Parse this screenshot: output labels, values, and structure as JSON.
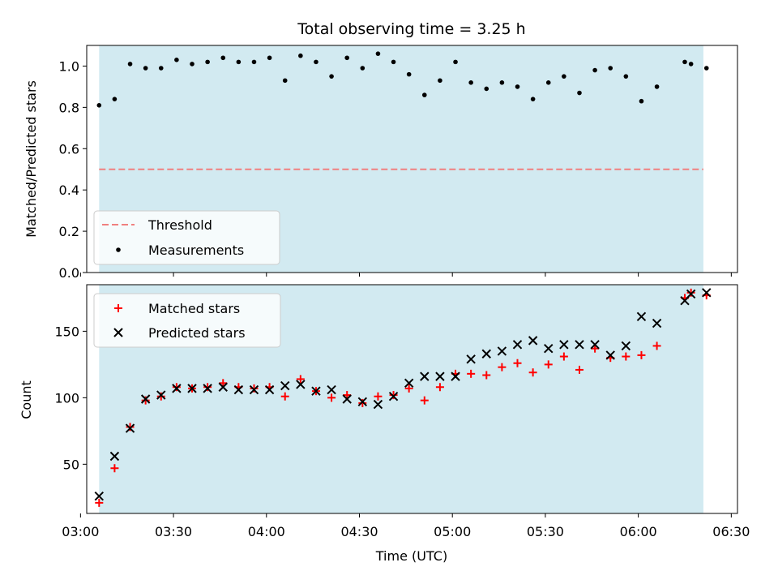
{
  "chart_data": [
    {
      "type": "scatter",
      "title": "Total observing time = 3.25 h",
      "xlabel": "",
      "ylabel": "Matched/Predicted stars",
      "ylim": [
        0,
        1.1
      ],
      "yticks": [
        "0.0",
        "0.2",
        "0.4",
        "0.6",
        "0.8",
        "1.0"
      ],
      "xlim": [
        "03:02",
        "06:32"
      ],
      "observing_window": [
        "03:06",
        "06:21"
      ],
      "threshold": 0.5,
      "legend": {
        "placement": "lower-left",
        "entries": [
          "Threshold",
          "Measurements"
        ]
      },
      "colors": {
        "band": "#add8e6",
        "threshold": "#f08080",
        "measurements": "#000000"
      },
      "series": [
        {
          "name": "Measurements",
          "x": [
            "03:06",
            "03:11",
            "03:16",
            "03:21",
            "03:26",
            "03:31",
            "03:36",
            "03:41",
            "03:46",
            "03:51",
            "03:56",
            "04:01",
            "04:06",
            "04:11",
            "04:16",
            "04:21",
            "04:26",
            "04:31",
            "04:36",
            "04:41",
            "04:46",
            "04:51",
            "04:56",
            "05:01",
            "05:06",
            "05:11",
            "05:16",
            "05:21",
            "05:26",
            "05:31",
            "05:36",
            "05:41",
            "05:46",
            "05:51",
            "05:56",
            "06:01",
            "06:06",
            "06:15",
            "06:17",
            "06:22"
          ],
          "y": [
            0.81,
            0.84,
            1.01,
            0.99,
            0.99,
            1.03,
            1.01,
            1.02,
            1.04,
            1.02,
            1.02,
            1.04,
            0.93,
            1.05,
            1.02,
            0.95,
            1.04,
            0.99,
            1.06,
            1.02,
            0.96,
            0.86,
            0.93,
            1.02,
            0.92,
            0.89,
            0.92,
            0.9,
            0.84,
            0.92,
            0.95,
            0.87,
            0.98,
            0.99,
            0.95,
            0.83,
            0.9,
            1.02,
            1.01,
            0.99
          ]
        }
      ]
    },
    {
      "type": "scatter",
      "title": "",
      "xlabel": "Time (UTC)",
      "ylabel": "Count",
      "ylim": [
        13,
        185
      ],
      "yticks": [
        "50",
        "100",
        "150"
      ],
      "xlim": [
        "03:02",
        "06:32"
      ],
      "xticks": [
        "03:00",
        "03:30",
        "04:00",
        "04:30",
        "05:00",
        "05:30",
        "06:00",
        "06:30"
      ],
      "observing_window": [
        "03:06",
        "06:21"
      ],
      "legend": {
        "placement": "upper-left",
        "entries": [
          "Matched stars",
          "Predicted stars"
        ]
      },
      "colors": {
        "band": "#add8e6",
        "matched": "#ff0000",
        "predicted": "#000000"
      },
      "series": [
        {
          "name": "Matched stars",
          "x": [
            "03:06",
            "03:11",
            "03:16",
            "03:21",
            "03:26",
            "03:31",
            "03:36",
            "03:41",
            "03:46",
            "03:51",
            "03:56",
            "04:01",
            "04:06",
            "04:11",
            "04:16",
            "04:21",
            "04:26",
            "04:31",
            "04:36",
            "04:41",
            "04:46",
            "04:51",
            "04:56",
            "05:01",
            "05:06",
            "05:11",
            "05:16",
            "05:21",
            "05:26",
            "05:31",
            "05:36",
            "05:41",
            "05:46",
            "05:51",
            "05:56",
            "06:01",
            "06:06",
            "06:15",
            "06:17",
            "06:22"
          ],
          "y": [
            21,
            47,
            78,
            98,
            101,
            108,
            107,
            108,
            111,
            108,
            107,
            108,
            101,
            114,
            105,
            100,
            102,
            96,
            101,
            102,
            107,
            98,
            108,
            118,
            118,
            117,
            123,
            126,
            119,
            125,
            131,
            121,
            137,
            130,
            131,
            132,
            139,
            175,
            179,
            177
          ]
        },
        {
          "name": "Predicted stars",
          "x": [
            "03:06",
            "03:11",
            "03:16",
            "03:21",
            "03:26",
            "03:31",
            "03:36",
            "03:41",
            "03:46",
            "03:51",
            "03:56",
            "04:01",
            "04:06",
            "04:11",
            "04:16",
            "04:21",
            "04:26",
            "04:31",
            "04:36",
            "04:41",
            "04:46",
            "04:51",
            "04:56",
            "05:01",
            "05:06",
            "05:11",
            "05:16",
            "05:21",
            "05:26",
            "05:31",
            "05:36",
            "05:41",
            "05:46",
            "05:51",
            "05:56",
            "06:01",
            "06:06",
            "06:15",
            "06:17",
            "06:22"
          ],
          "y": [
            26,
            56,
            77,
            99,
            102,
            107,
            107,
            107,
            108,
            106,
            106,
            106,
            109,
            110,
            105,
            106,
            99,
            97,
            95,
            101,
            111,
            116,
            116,
            116,
            129,
            133,
            135,
            140,
            143,
            137,
            140,
            140,
            140,
            132,
            139,
            161,
            156,
            173,
            178,
            179
          ]
        }
      ]
    }
  ]
}
